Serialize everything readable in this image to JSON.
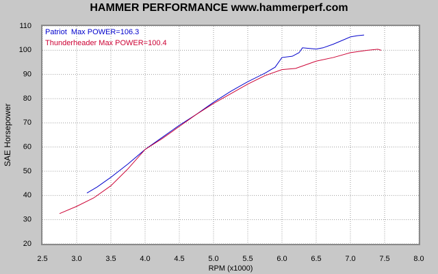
{
  "chart_data": {
    "type": "line",
    "title": "HAMMER PERFORMANCE www.hammerperf.com",
    "x_label": "RPM (x1000)",
    "y_label": "SAE Horsepower",
    "xlim": [
      2.5,
      8.0
    ],
    "xticks": [
      2.5,
      {
        "value": 3,
        "label": "3.0"
      },
      3.5,
      {
        "value": 4,
        "label": "4.0"
      },
      4.5,
      {
        "value": 5,
        "label": "5.0"
      },
      5.5,
      {
        "value": 6,
        "label": "6.0"
      },
      6.5,
      {
        "value": 7,
        "label": "7.0"
      },
      7.5,
      {
        "value": 8,
        "label": "8.0"
      }
    ],
    "ylim": [
      20,
      110
    ],
    "yticks": [
      20,
      30,
      40,
      50,
      60,
      70,
      80,
      90,
      100,
      110
    ],
    "grid": true,
    "series": [
      {
        "name": "Patriot  Max POWER=106.3",
        "color": "#0000cc",
        "x": [
          3.15,
          3.3,
          3.5,
          3.75,
          4.0,
          4.25,
          4.5,
          4.75,
          5.0,
          5.25,
          5.5,
          5.75,
          5.9,
          6.0,
          6.15,
          6.25,
          6.3,
          6.5,
          6.6,
          6.75,
          7.0,
          7.1,
          7.2
        ],
        "values": [
          41,
          43.5,
          47.5,
          53,
          59,
          64,
          69,
          73.5,
          78.5,
          83,
          87,
          90.5,
          93,
          97,
          97.5,
          99,
          101,
          100.5,
          101,
          102.5,
          105.5,
          106,
          106.3
        ]
      },
      {
        "name": "Thunderheader Max POWER=100.4",
        "color": "#cc0033",
        "x": [
          2.75,
          3.0,
          3.25,
          3.5,
          3.75,
          4.0,
          4.25,
          4.5,
          4.75,
          5.0,
          5.25,
          5.5,
          5.75,
          6.0,
          6.2,
          6.5,
          6.75,
          7.0,
          7.25,
          7.4,
          7.45
        ],
        "values": [
          32.5,
          35.5,
          39,
          44,
          51,
          59,
          63.5,
          68.5,
          73.5,
          78,
          82,
          86,
          89.5,
          92,
          92.5,
          95.5,
          97,
          99,
          100,
          100.4,
          100
        ]
      }
    ]
  }
}
